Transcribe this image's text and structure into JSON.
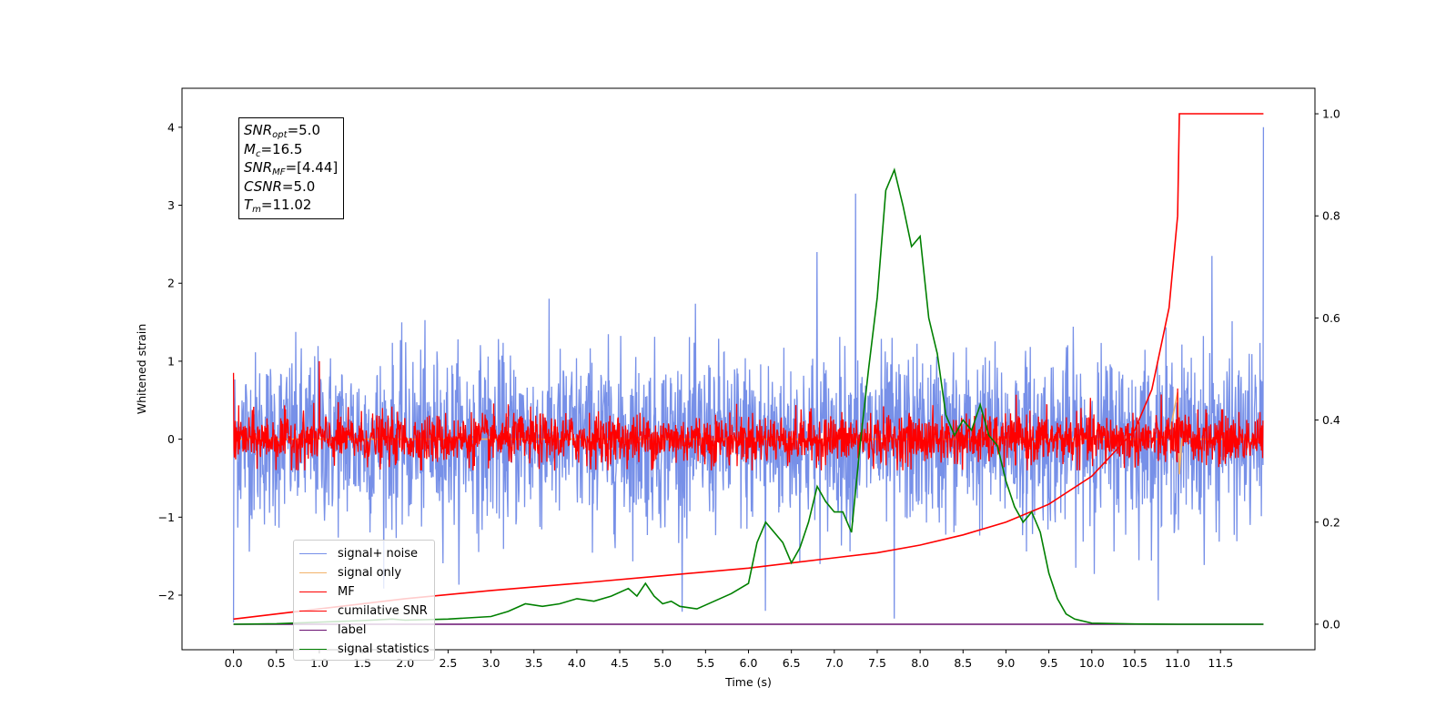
{
  "chart_data": {
    "type": "line",
    "title": "",
    "xlabel": "Time (s)",
    "ylabel": "Whitened strain",
    "xlim": [
      -0.6,
      12.6
    ],
    "ylim": [
      -2.7,
      4.5
    ],
    "y2lim": [
      -0.05,
      1.05
    ],
    "grid": false,
    "legend_placement": "lower-left",
    "x_ticks": [
      "0.0",
      "0.5",
      "1.0",
      "1.5",
      "2.0",
      "2.5",
      "3.0",
      "3.5",
      "4.0",
      "4.5",
      "5.0",
      "5.5",
      "6.0",
      "6.5",
      "7.0",
      "7.5",
      "8.0",
      "8.5",
      "9.0",
      "9.5",
      "10.0",
      "10.5",
      "11.0",
      "11.5"
    ],
    "y_ticks": [
      "−2",
      "−1",
      "0",
      "1",
      "2",
      "3",
      "4"
    ],
    "y2_ticks": [
      "0.0",
      "0.2",
      "0.4",
      "0.6",
      "0.8",
      "1.0"
    ],
    "annotation": {
      "snr_opt": "5.0",
      "mc": "16.5",
      "snr_mf": "[4.44]",
      "csnr": "5.0",
      "tm": "11.02"
    },
    "series": [
      {
        "name": "signal+ noise",
        "color": "#7790e8",
        "axis": "left",
        "description": "noise band",
        "x_range": [
          0.0,
          12.0
        ],
        "spread": 0.55,
        "amplitude_range": [
          -2.3,
          2.4
        ],
        "spikes": [
          [
            0.0,
            -2.35
          ],
          [
            6.2,
            -2.2
          ],
          [
            6.8,
            2.4
          ],
          [
            7.25,
            3.15
          ],
          [
            7.7,
            -2.3
          ],
          [
            11.4,
            2.35
          ],
          [
            12.0,
            4.0
          ]
        ]
      },
      {
        "name": "signal only",
        "color": "#f2b36b",
        "axis": "left",
        "x": [
          0.0,
          10.8,
          10.9,
          11.0,
          11.02,
          11.05,
          12.0
        ],
        "y": [
          0.0,
          0.0,
          0.05,
          0.6,
          -0.45,
          0.0,
          0.0
        ]
      },
      {
        "name": "MF",
        "color": "#ff0000",
        "axis": "left",
        "description": "noise band",
        "x_range": [
          0.0,
          12.0
        ],
        "spread": 0.16,
        "amplitude_range": [
          -0.4,
          0.8
        ],
        "spikes": [
          [
            0.0,
            0.85
          ],
          [
            1.0,
            1.0
          ],
          [
            11.0,
            0.65
          ]
        ]
      },
      {
        "name": "cumilative SNR",
        "color": "#ff0000",
        "axis": "right",
        "x": [
          0.0,
          1.0,
          2.0,
          3.0,
          4.0,
          5.0,
          6.0,
          7.0,
          7.5,
          8.0,
          8.5,
          9.0,
          9.5,
          10.0,
          10.5,
          10.7,
          10.9,
          11.0,
          11.02,
          12.0
        ],
        "y": [
          0.01,
          0.03,
          0.05,
          0.066,
          0.08,
          0.095,
          0.11,
          0.13,
          0.14,
          0.155,
          0.175,
          0.2,
          0.235,
          0.29,
          0.38,
          0.46,
          0.62,
          0.8,
          1.0,
          1.0
        ]
      },
      {
        "name": "label",
        "color": "#6a1070",
        "axis": "right",
        "x": [
          0.0,
          12.0
        ],
        "y": [
          0.0,
          0.0
        ]
      },
      {
        "name": "signal statistics",
        "color": "#008000",
        "axis": "right",
        "x": [
          0.0,
          0.5,
          1.0,
          1.5,
          1.85,
          2.0,
          2.5,
          3.0,
          3.2,
          3.4,
          3.6,
          3.8,
          4.0,
          4.2,
          4.4,
          4.6,
          4.7,
          4.8,
          4.9,
          5.0,
          5.1,
          5.2,
          5.4,
          5.6,
          5.8,
          6.0,
          6.1,
          6.2,
          6.3,
          6.4,
          6.5,
          6.6,
          6.7,
          6.8,
          6.9,
          7.0,
          7.1,
          7.2,
          7.3,
          7.4,
          7.5,
          7.6,
          7.7,
          7.8,
          7.9,
          8.0,
          8.1,
          8.2,
          8.3,
          8.4,
          8.5,
          8.6,
          8.7,
          8.8,
          8.9,
          9.0,
          9.1,
          9.2,
          9.3,
          9.4,
          9.5,
          9.6,
          9.7,
          9.8,
          10.0,
          10.5,
          11.0,
          12.0
        ],
        "y": [
          0.0,
          0.001,
          0.004,
          0.007,
          0.01,
          0.008,
          0.01,
          0.015,
          0.025,
          0.04,
          0.035,
          0.04,
          0.05,
          0.045,
          0.055,
          0.07,
          0.055,
          0.08,
          0.055,
          0.04,
          0.045,
          0.035,
          0.03,
          0.045,
          0.06,
          0.08,
          0.16,
          0.2,
          0.18,
          0.16,
          0.12,
          0.15,
          0.2,
          0.27,
          0.24,
          0.22,
          0.22,
          0.18,
          0.35,
          0.5,
          0.64,
          0.85,
          0.89,
          0.82,
          0.74,
          0.76,
          0.6,
          0.53,
          0.41,
          0.37,
          0.4,
          0.38,
          0.43,
          0.37,
          0.35,
          0.28,
          0.23,
          0.2,
          0.22,
          0.18,
          0.1,
          0.05,
          0.02,
          0.01,
          0.002,
          0.0005,
          0.0,
          0.0
        ]
      }
    ]
  }
}
